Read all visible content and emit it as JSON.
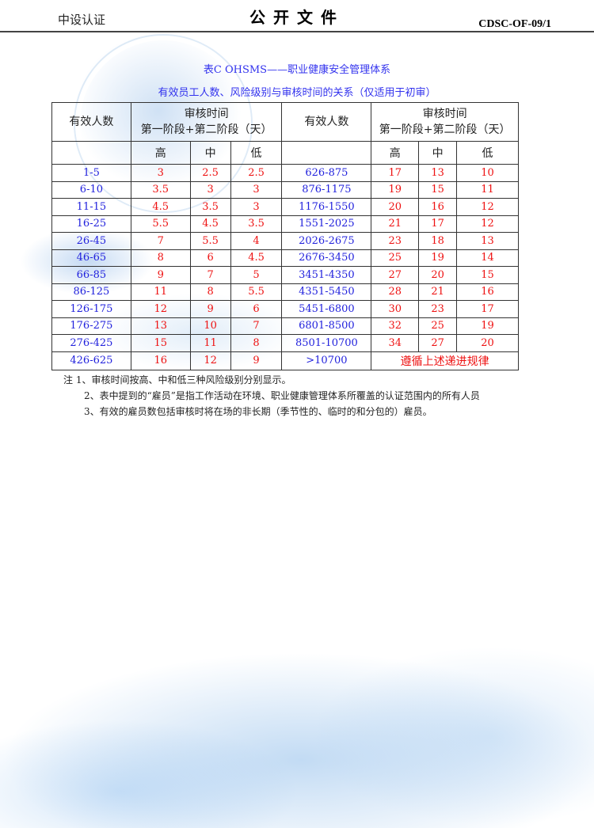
{
  "header": {
    "left": "中设认证",
    "center": "公开文件",
    "right": "CDSC-OF-09/1"
  },
  "title1": "表C  OHSMS——职业健康安全管理体系",
  "title2": "有效员工人数、风险级别与审核时间的关系（仅适用于初审）",
  "table": {
    "col_people": "有效人数",
    "col_time_1": "审核时间",
    "col_time_2": "第一阶段+第二阶段（天）",
    "levels": [
      "高",
      "中",
      "低"
    ],
    "rows": [
      [
        "1-5",
        "3",
        "2.5",
        "2.5",
        "626-875",
        "17",
        "13",
        "10"
      ],
      [
        "6-10",
        "3.5",
        "3",
        "3",
        "876-1175",
        "19",
        "15",
        "11"
      ],
      [
        "11-15",
        "4.5",
        "3.5",
        "3",
        "1176-1550",
        "20",
        "16",
        "12"
      ],
      [
        "16-25",
        "5.5",
        "4.5",
        "3.5",
        "1551-2025",
        "21",
        "17",
        "12"
      ],
      [
        "26-45",
        "7",
        "5.5",
        "4",
        "2026-2675",
        "23",
        "18",
        "13"
      ],
      [
        "46-65",
        "8",
        "6",
        "4.5",
        "2676-3450",
        "25",
        "19",
        "14"
      ],
      [
        "66-85",
        "9",
        "7",
        "5",
        "3451-4350",
        "27",
        "20",
        "15"
      ],
      [
        "86-125",
        "11",
        "8",
        "5.5",
        "4351-5450",
        "28",
        "21",
        "16"
      ],
      [
        "126-175",
        "12",
        "9",
        "6",
        "5451-6800",
        "30",
        "23",
        "17"
      ],
      [
        "176-275",
        "13",
        "10",
        "7",
        "6801-8500",
        "32",
        "25",
        "19"
      ],
      [
        "276-425",
        "15",
        "11",
        "8",
        "8501-10700",
        "34",
        "27",
        "20"
      ]
    ],
    "last_row": [
      "426-625",
      "16",
      "12",
      "9",
      ">10700",
      "遵循上述递进规律"
    ]
  },
  "notes": [
    "注  1、审核时间按高、中和低三种风险级别分别显示。",
    "2、表中提到的“雇员”是指工作活动在环境、职业健康管理体系所覆盖的认证范围内的所有人员",
    "3、有效的雇员数包括审核时将在场的非长期（季节性的、临时的和分包的）雇员。"
  ]
}
